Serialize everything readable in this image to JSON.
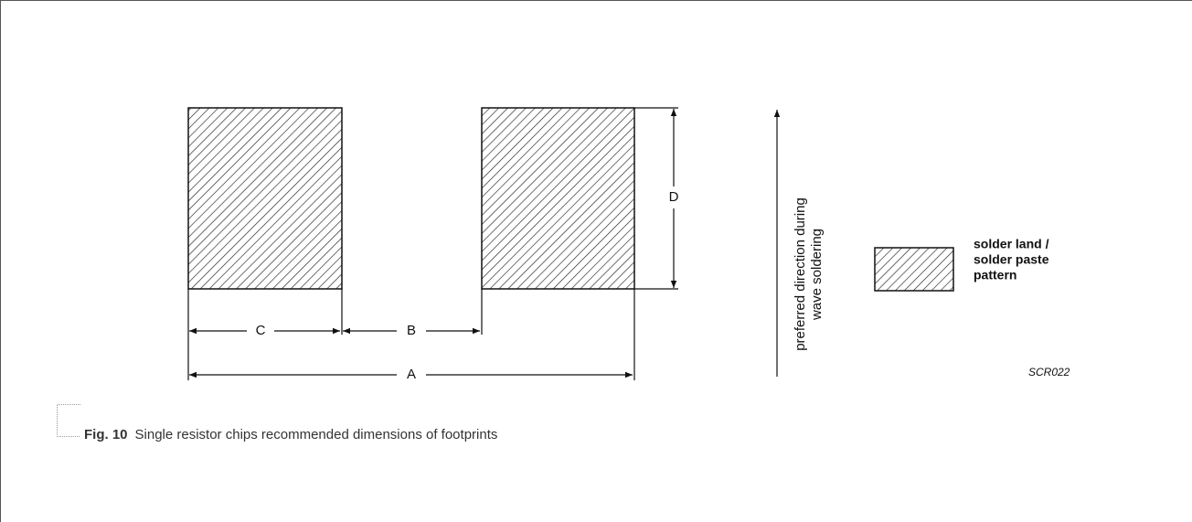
{
  "dimensions": {
    "a": "A",
    "b": "B",
    "c": "C",
    "d": "D"
  },
  "direction": {
    "lines": [
      "preferred direction during",
      "wave soldering"
    ]
  },
  "legend": {
    "lines": [
      "solder land /",
      "solder paste",
      "pattern"
    ]
  },
  "code": "SCR022",
  "caption": {
    "label": "Fig. 10",
    "text": "Single resistor chips recommended dimensions of footprints"
  }
}
